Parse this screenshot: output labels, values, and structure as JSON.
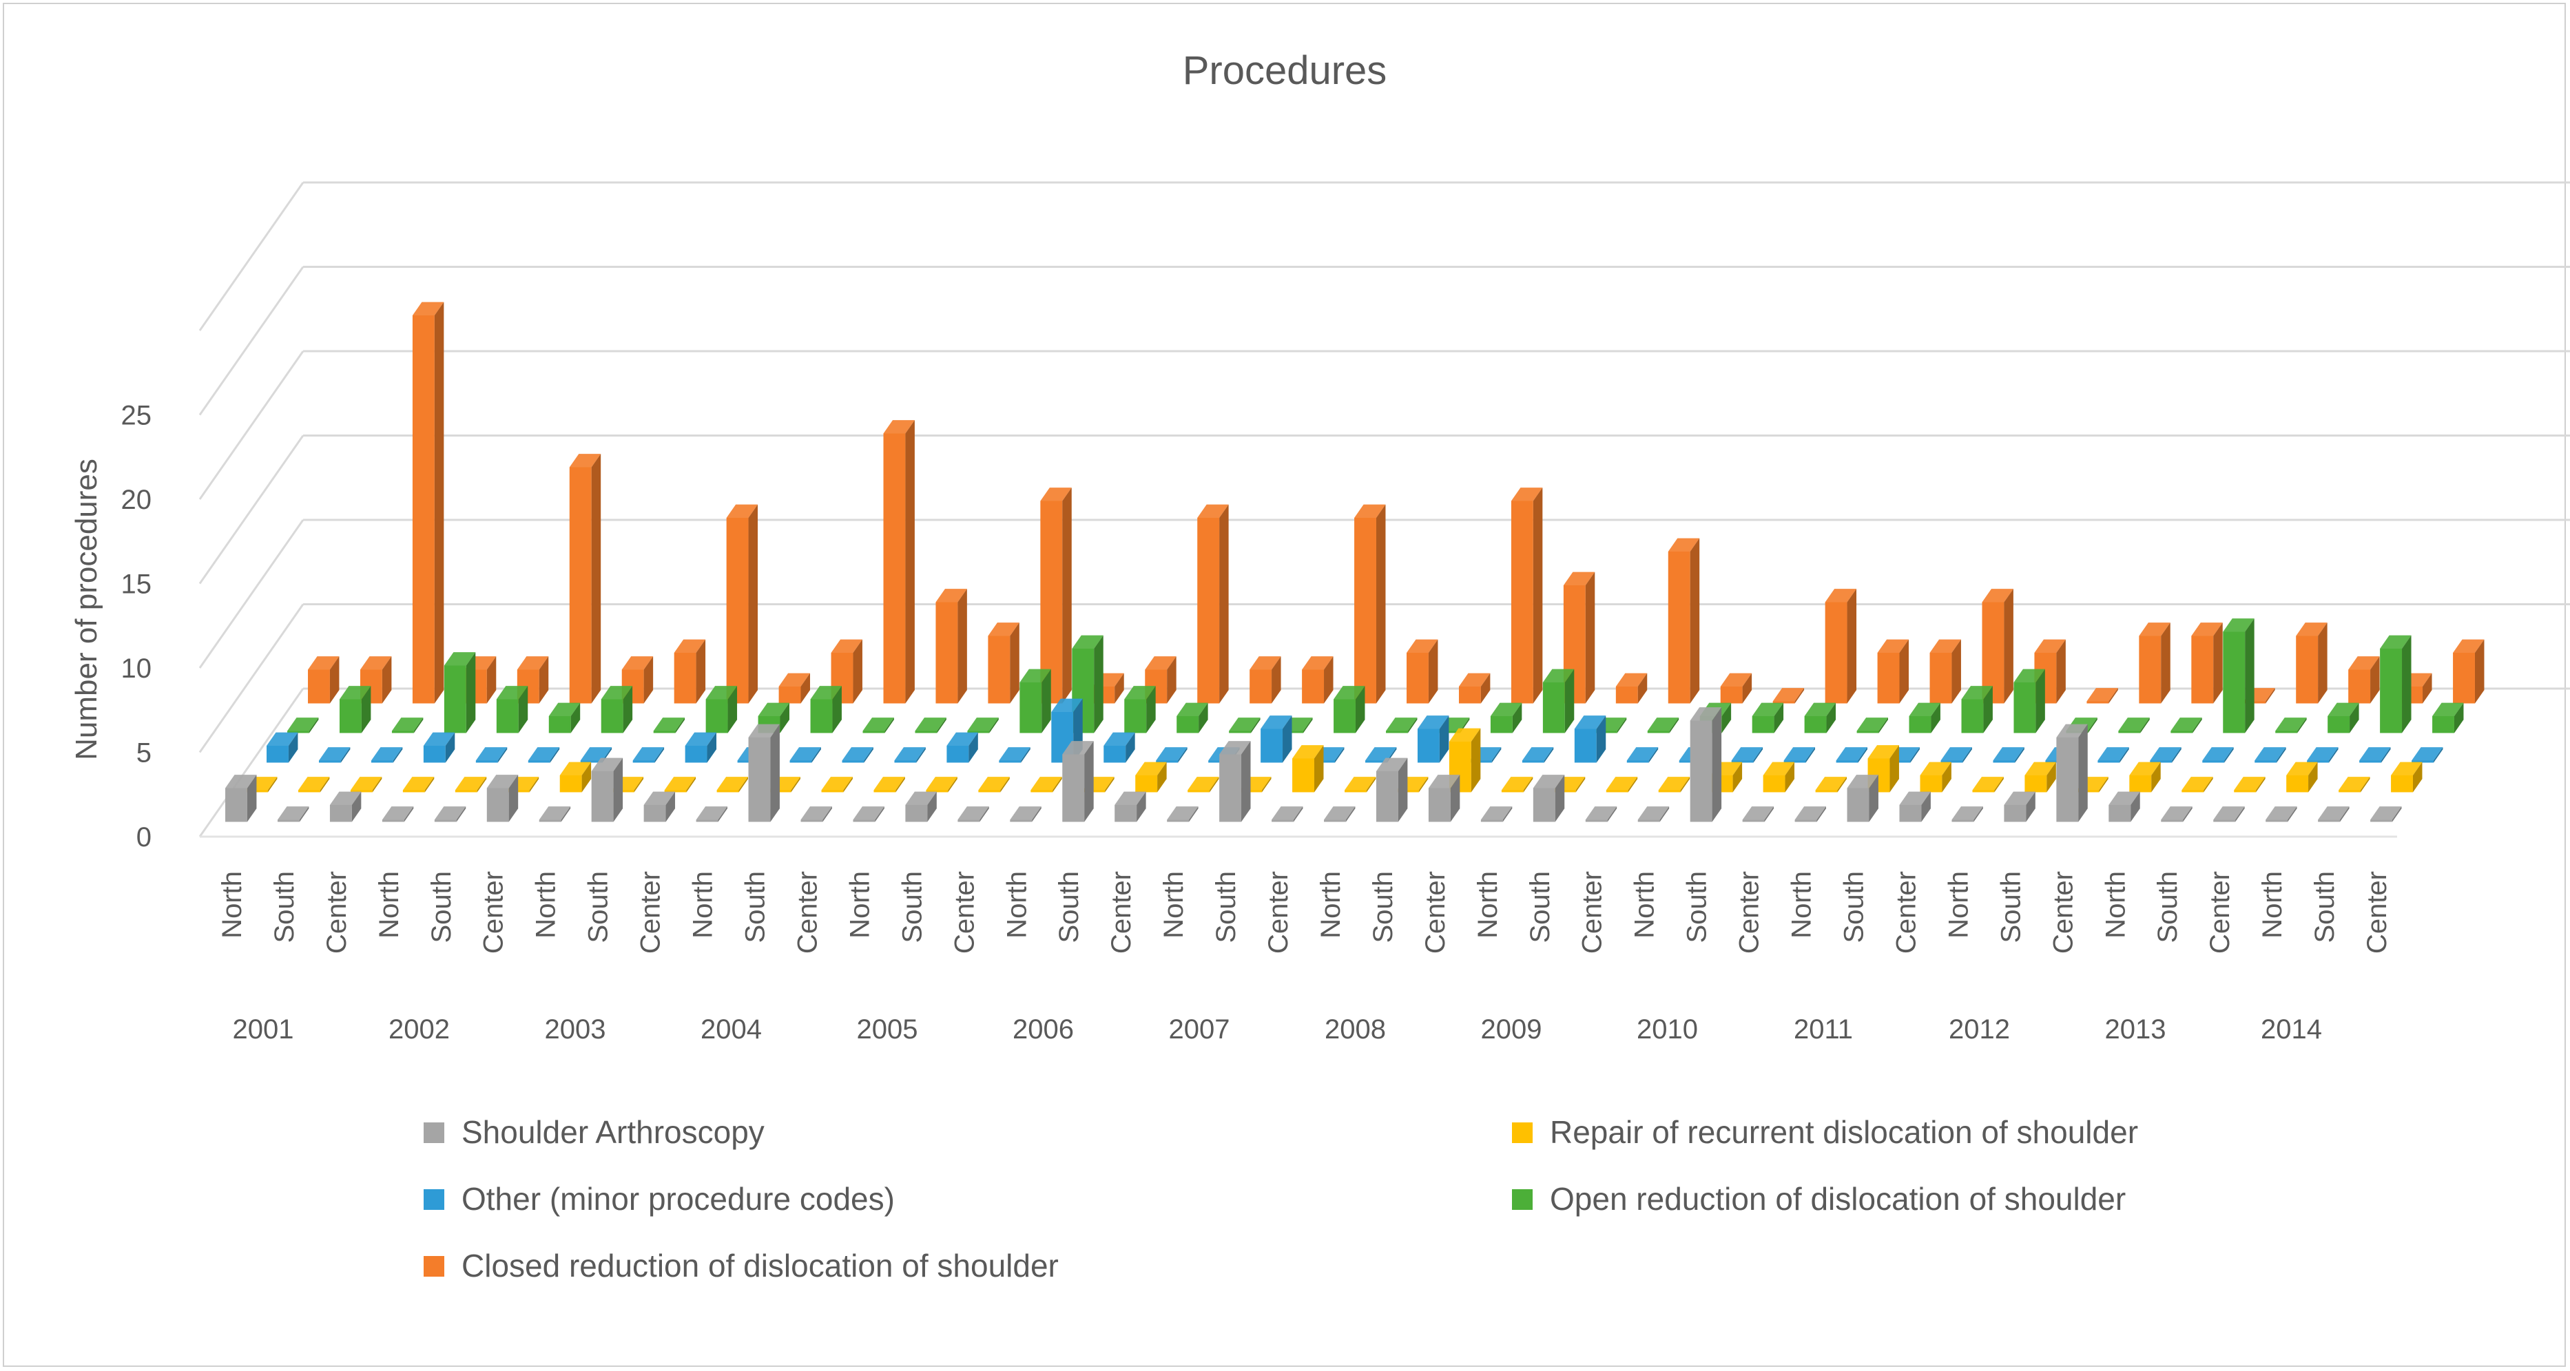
{
  "chart_data": {
    "type": "bar",
    "variant": "3d-column",
    "title": "Procedures",
    "xlabel": "",
    "ylabel": "Number of procedures",
    "ylim": [
      0,
      30
    ],
    "yticks": [
      0,
      5,
      10,
      15,
      20,
      25
    ],
    "grid": true,
    "legend_position": "bottom",
    "region_labels": [
      "North",
      "South",
      "Center"
    ],
    "years": [
      "2001",
      "2002",
      "2003",
      "2004",
      "2005",
      "2006",
      "2007",
      "2008",
      "2009",
      "2010",
      "2011",
      "2012",
      "2013",
      "2014"
    ],
    "categories": [
      "2001 North",
      "2001 South",
      "2001 Center",
      "2002 North",
      "2002 South",
      "2002 Center",
      "2003 North",
      "2003 South",
      "2003 Center",
      "2004 North",
      "2004 South",
      "2004 Center",
      "2005 North",
      "2005 South",
      "2005 Center",
      "2006 North",
      "2006 South",
      "2006 Center",
      "2007 North",
      "2007 South",
      "2007 Center",
      "2008 North",
      "2008 South",
      "2008 Center",
      "2009 North",
      "2009 South",
      "2009 Center",
      "2010 North",
      "2010 South",
      "2010 Center",
      "2011 North",
      "2011 South",
      "2011 Center",
      "2012 North",
      "2012 South",
      "2012 Center",
      "2013 North",
      "2013 South",
      "2013 Center",
      "2014 North",
      "2014 South",
      "2014 Center"
    ],
    "series": [
      {
        "name": "Shoulder Arthroscopy",
        "color": "#a5a5a5",
        "values": [
          2,
          0,
          1,
          0,
          0,
          2,
          0,
          3,
          1,
          0,
          5,
          0,
          0,
          1,
          0,
          0,
          4,
          1,
          0,
          4,
          0,
          0,
          3,
          2,
          0,
          2,
          0,
          0,
          6,
          0,
          0,
          2,
          1,
          0,
          1,
          5,
          1,
          0,
          0,
          0,
          0,
          0
        ]
      },
      {
        "name": "Repair of recurrent dislocation of shoulder",
        "color": "#ffc000",
        "values": [
          0,
          0,
          0,
          0,
          0,
          0,
          1,
          0,
          0,
          0,
          0,
          0,
          0,
          0,
          0,
          0,
          0,
          1,
          0,
          0,
          2,
          0,
          0,
          3,
          0,
          0,
          0,
          0,
          1,
          1,
          0,
          2,
          1,
          0,
          1,
          0,
          1,
          0,
          0,
          1,
          0,
          1
        ]
      },
      {
        "name": "Other (minor procedure codes)",
        "color": "#2e9bd6",
        "values": [
          1,
          0,
          0,
          1,
          0,
          0,
          0,
          0,
          1,
          0,
          0,
          0,
          0,
          1,
          0,
          3,
          1,
          0,
          0,
          2,
          0,
          0,
          2,
          0,
          0,
          2,
          0,
          0,
          0,
          0,
          0,
          0,
          0,
          0,
          0,
          0,
          0,
          0,
          0,
          0,
          0,
          0
        ]
      },
      {
        "name": "Open reduction of dislocation of shoulder",
        "color": "#4caf38",
        "values": [
          0,
          2,
          0,
          4,
          2,
          1,
          2,
          0,
          2,
          1,
          2,
          0,
          0,
          0,
          3,
          5,
          2,
          1,
          0,
          0,
          2,
          0,
          0,
          1,
          3,
          0,
          0,
          1,
          1,
          1,
          0,
          1,
          2,
          3,
          0,
          0,
          0,
          6,
          0,
          1,
          5,
          1
        ]
      },
      {
        "name": "Closed reduction of dislocation of shoulder",
        "color": "#f47d2a",
        "values": [
          2,
          2,
          23,
          2,
          2,
          14,
          2,
          3,
          11,
          1,
          3,
          16,
          6,
          4,
          12,
          1,
          2,
          11,
          2,
          2,
          11,
          3,
          1,
          12,
          7,
          1,
          9,
          1,
          0,
          6,
          3,
          3,
          6,
          3,
          0,
          4,
          4,
          0,
          4,
          2,
          1,
          3
        ]
      }
    ]
  },
  "legend": {
    "items": [
      {
        "label": "Shoulder Arthroscopy",
        "color": "#a5a5a5"
      },
      {
        "label": "Repair of recurrent dislocation of shoulder",
        "color": "#ffc000"
      },
      {
        "label": "Other (minor procedure codes)",
        "color": "#2e9bd6"
      },
      {
        "label": "Open reduction of dislocation of shoulder",
        "color": "#4caf38"
      },
      {
        "label": "Closed reduction of dislocation of shoulder",
        "color": "#f47d2a"
      }
    ]
  }
}
